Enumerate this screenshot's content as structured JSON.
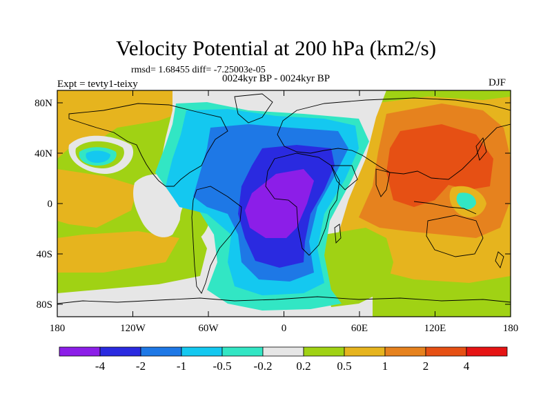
{
  "figure": {
    "title": "Velocity Potential at 200 hPa (km2/s)",
    "rmsd_line": "rmsd= 1.68455 diff= -7.25003e-05",
    "period": "0024kyr BP - 0024kyr BP",
    "expt": "Expt = tevty1-teixy",
    "season": "DJF"
  },
  "axes": {
    "lat_ticks": [
      "80N",
      "40N",
      "0",
      "40S",
      "80S"
    ],
    "lon_ticks": [
      "180",
      "120W",
      "60W",
      "0",
      "60E",
      "120E",
      "180"
    ]
  },
  "colorbar": {
    "labels": [
      "-4",
      "-2",
      "-1",
      "-0.5",
      "-0.2",
      "0.2",
      "0.5",
      "1",
      "2",
      "4"
    ],
    "colors": [
      "#8c1ee8",
      "#2a2ae0",
      "#1e78e6",
      "#14c8f0",
      "#32e6c4",
      "#e6e6e6",
      "#a0d214",
      "#e6b41e",
      "#e6821e",
      "#e65014",
      "#e61414"
    ]
  },
  "map_colors": {
    "lt_neg02": "#32e6c4",
    "lt_neg05": "#14c8f0",
    "lt_neg1": "#1e78e6",
    "lt_neg2": "#2a2ae0",
    "lt_neg4": "#8c1ee8",
    "neutral": "#e6e6e6",
    "gt_02": "#a0d214",
    "gt_05": "#e6b41e",
    "gt_1": "#e6821e",
    "gt_2": "#e65014"
  }
}
